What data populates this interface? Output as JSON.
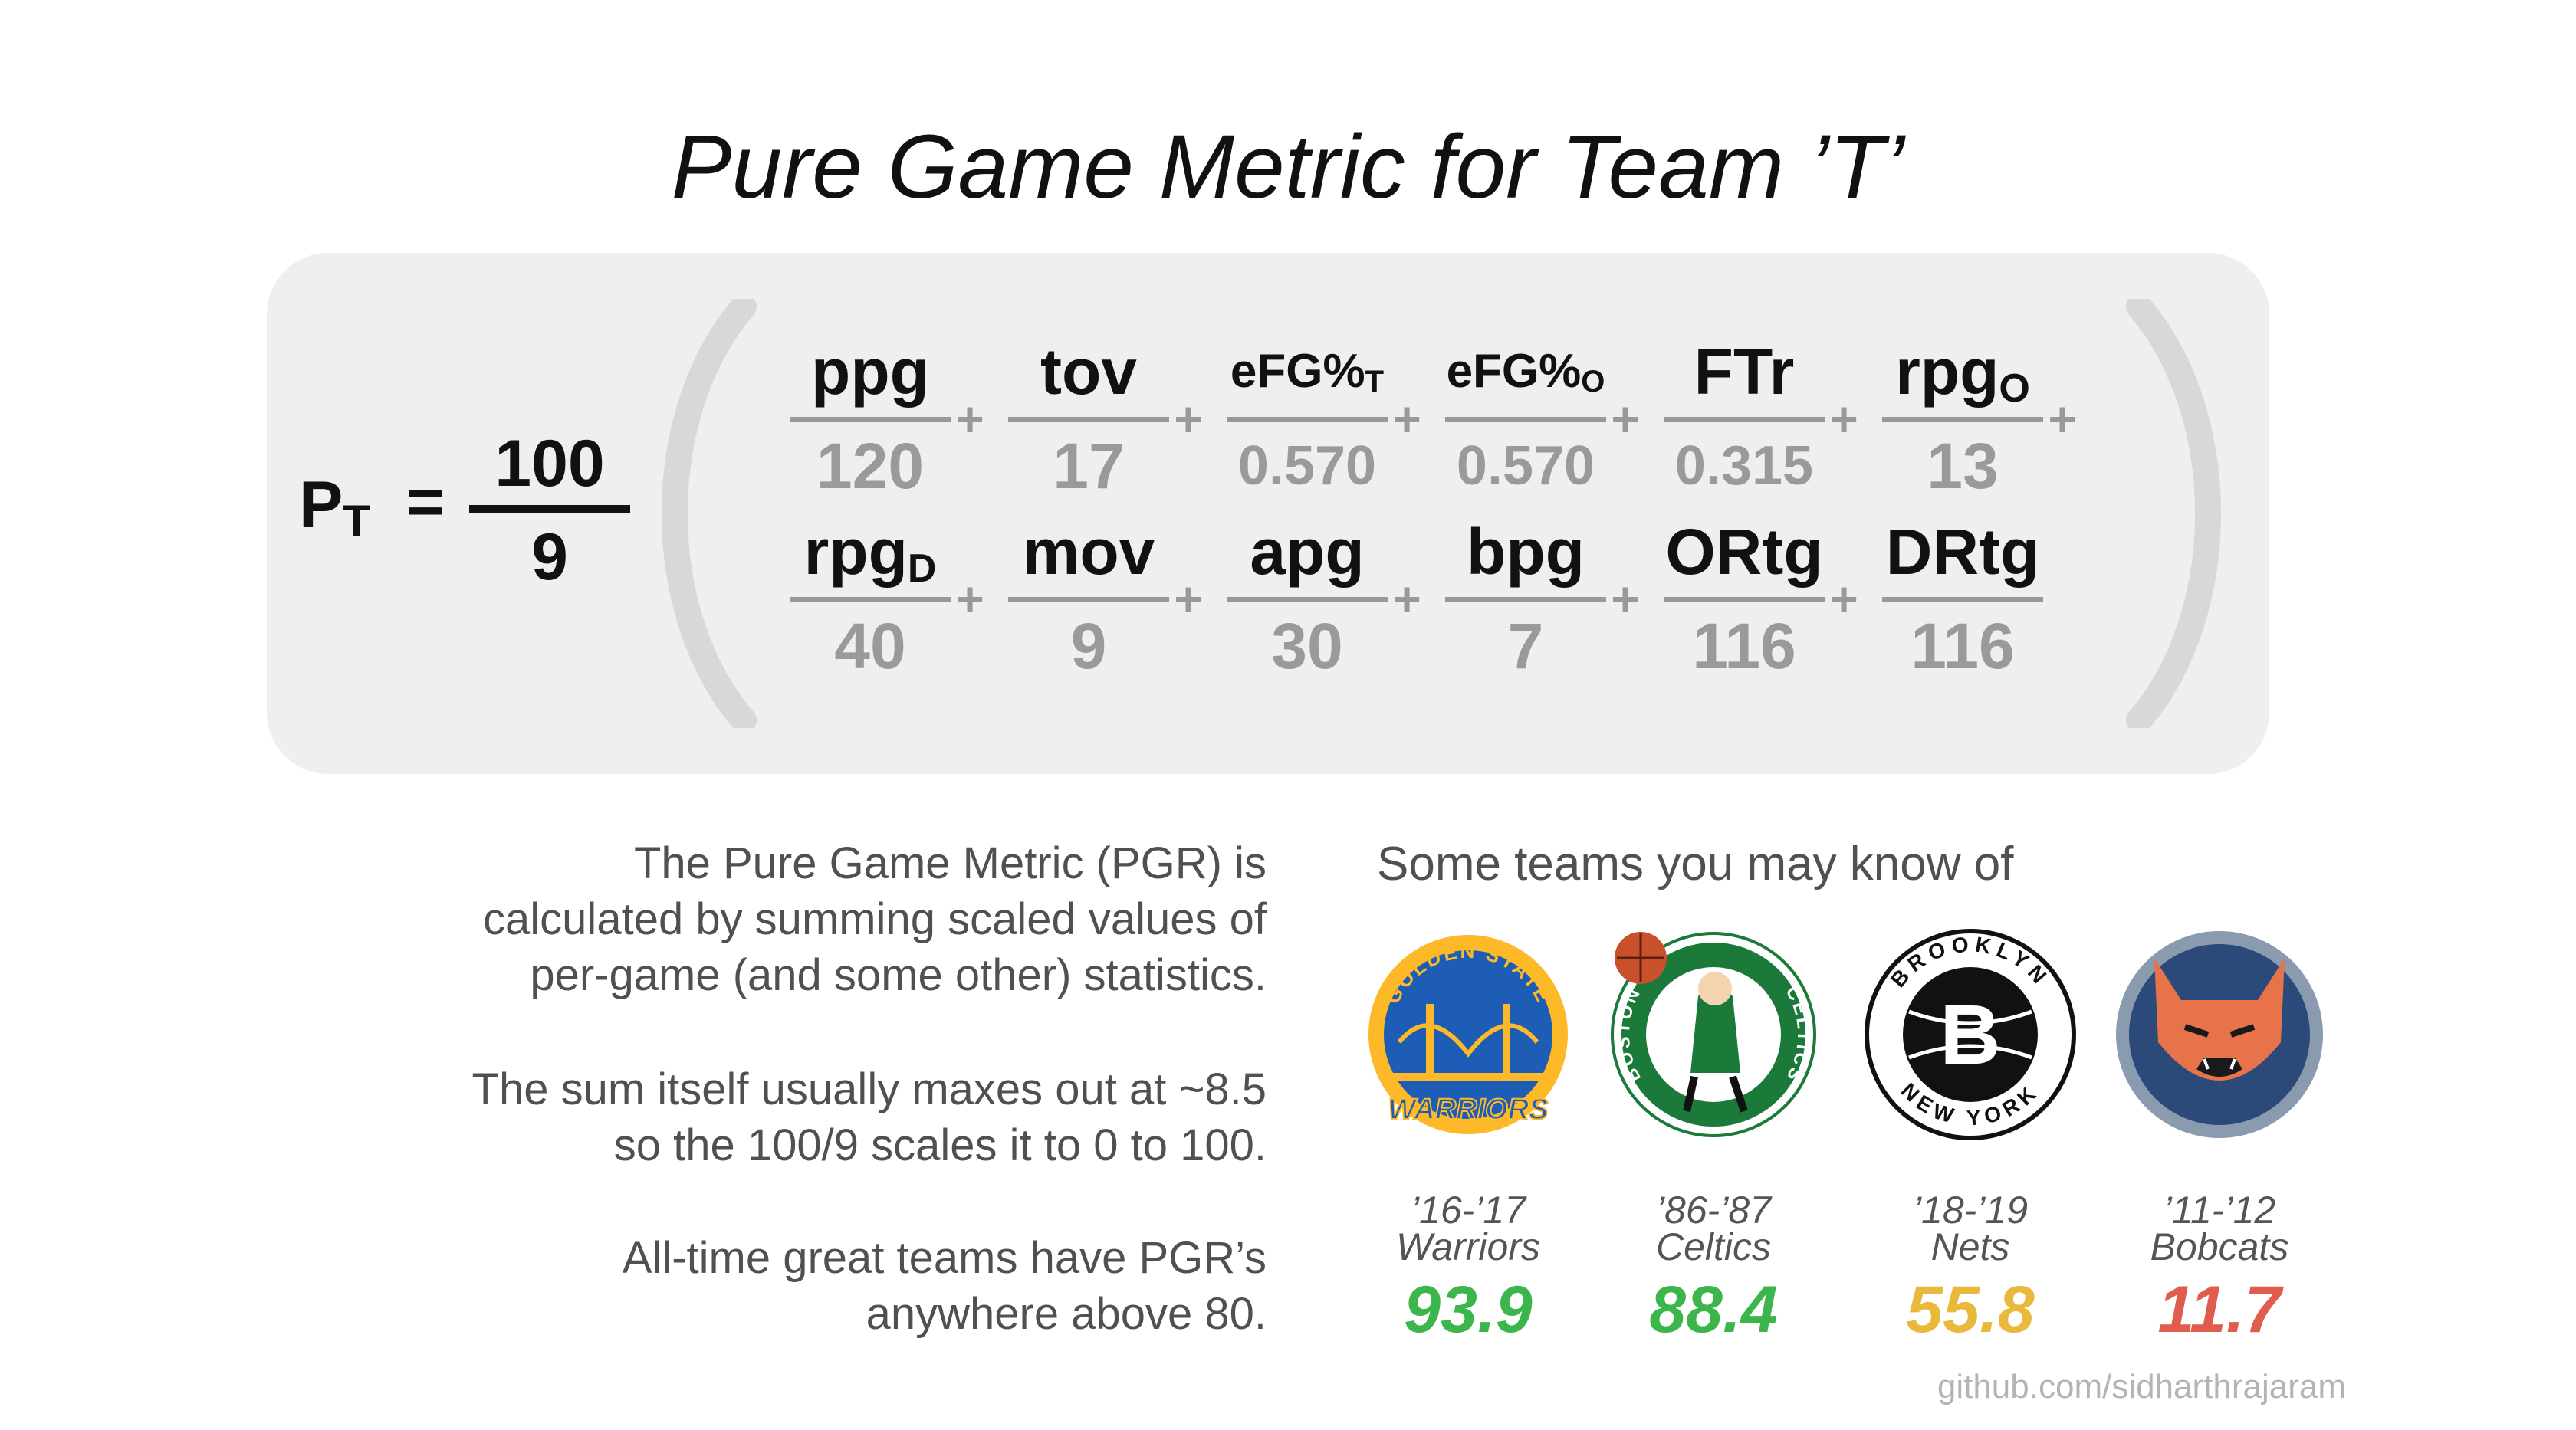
{
  "title": "Pure Game Metric for Team ’T’",
  "formula": {
    "lhs": "P",
    "lhs_sub": "T",
    "equals": "=",
    "scale_num": "100",
    "scale_den": "9",
    "plus": "+",
    "row1": [
      {
        "name": "ppg",
        "sub": "",
        "den": "120"
      },
      {
        "name": "tov",
        "sub": "",
        "den": "17"
      },
      {
        "name": "eFG%",
        "sub": "T",
        "den": "0.570"
      },
      {
        "name": "eFG%",
        "sub": "O",
        "den": "0.570"
      },
      {
        "name": "FTr",
        "sub": "",
        "den": "0.315"
      },
      {
        "name": "rpg",
        "sub": "O",
        "den": "13"
      }
    ],
    "row2": [
      {
        "name": "rpg",
        "sub": "D",
        "den": "40"
      },
      {
        "name": "mov",
        "sub": "",
        "den": "9"
      },
      {
        "name": "apg",
        "sub": "",
        "den": "30"
      },
      {
        "name": "bpg",
        "sub": "",
        "den": "7"
      },
      {
        "name": "ORtg",
        "sub": "",
        "den": "116"
      },
      {
        "name": "DRtg",
        "sub": "",
        "den": "116"
      }
    ]
  },
  "description": {
    "p1": [
      "The Pure Game Metric (PGR) is",
      "calculated by summing scaled values of",
      "per-game (and some other) statistics."
    ],
    "p2": [
      "The sum itself usually maxes out at ~8.5",
      "so the 100/9 scales it to 0 to 100."
    ],
    "p3": [
      "All-time great teams have PGR’s",
      "anywhere above 80."
    ]
  },
  "teams_heading": "Some teams you may know of",
  "teams": [
    {
      "season": "’16-’17",
      "name": "Warriors",
      "score": "93.9",
      "color": "#3cb54a",
      "logo": "warriors-logo",
      "logo_text_top": "GOLDEN STATE",
      "logo_text_bottom": "WARRIORS"
    },
    {
      "season": "’86-’87",
      "name": "Celtics",
      "score": "88.4",
      "color": "#3cb54a",
      "logo": "celtics-logo",
      "logo_text_left": "BOSTON",
      "logo_text_right": "CELTICS"
    },
    {
      "season": "’18-’19",
      "name": "Nets",
      "score": "55.8",
      "color": "#e8b93a",
      "logo": "nets-logo",
      "logo_text_top": "BROOKLYN",
      "logo_text_bottom": "NEW YORK"
    },
    {
      "season": "’11-’12",
      "name": "Bobcats",
      "score": "11.7",
      "color": "#e05c4c",
      "logo": "bobcats-logo"
    }
  ],
  "credit": "github.com/sidharthrajaram"
}
